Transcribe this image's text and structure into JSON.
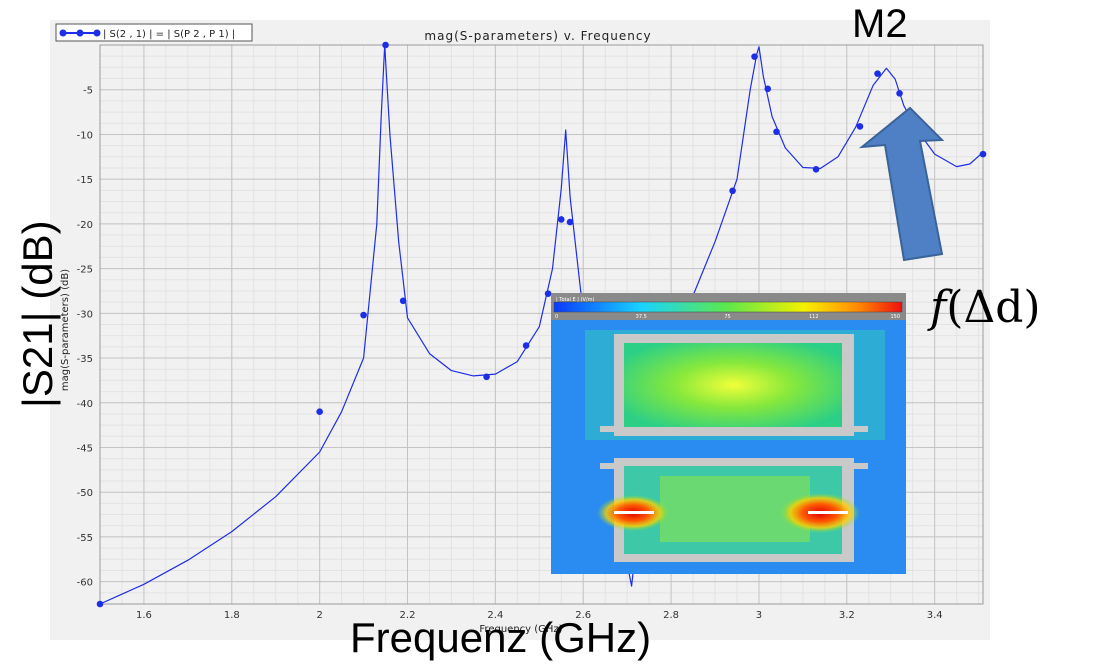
{
  "chart_data": {
    "type": "line",
    "title": "mag(S-parameters) v. Frequency",
    "xlabel": "Frequency (GHz)",
    "ylabel": "mag(S-parameters) (dB)",
    "xlim": [
      1.5,
      3.51
    ],
    "ylim": [
      -62.5,
      0
    ],
    "x_ticks": [
      "1.6",
      "1.8",
      "2",
      "2.2",
      "2.4",
      "2.6",
      "2.8",
      "3",
      "3.2",
      "3.4"
    ],
    "y_ticks": [
      "-5",
      "-10",
      "-15",
      "-20",
      "-25",
      "-30",
      "-35",
      "-40",
      "-45",
      "-50",
      "-55",
      "-60"
    ],
    "grid": true,
    "legend": "| S(2 , 1) | = | S(P 2 , P 1) |",
    "legend_position": "top-left",
    "series": [
      {
        "name": "| S(2 , 1) | = | S(P 2 , P 1) |",
        "color": "#1e2ee6",
        "curve": [
          [
            1.5,
            -62.5
          ],
          [
            1.6,
            -60.3
          ],
          [
            1.7,
            -57.6
          ],
          [
            1.8,
            -54.4
          ],
          [
            1.9,
            -50.5
          ],
          [
            2.0,
            -45.5
          ],
          [
            2.05,
            -41.0
          ],
          [
            2.1,
            -35.0
          ],
          [
            2.13,
            -20.0
          ],
          [
            2.14,
            -8.0
          ],
          [
            2.148,
            0.0
          ],
          [
            2.16,
            -10.0
          ],
          [
            2.18,
            -22.0
          ],
          [
            2.2,
            -30.5
          ],
          [
            2.25,
            -34.5
          ],
          [
            2.3,
            -36.4
          ],
          [
            2.35,
            -37.0
          ],
          [
            2.4,
            -36.8
          ],
          [
            2.45,
            -35.4
          ],
          [
            2.5,
            -31.5
          ],
          [
            2.53,
            -25.0
          ],
          [
            2.55,
            -16.0
          ],
          [
            2.56,
            -9.5
          ],
          [
            2.57,
            -17.0
          ],
          [
            2.6,
            -30.0
          ],
          [
            2.65,
            -42.0
          ],
          [
            2.68,
            -52.0
          ],
          [
            2.7,
            -58.0
          ],
          [
            2.71,
            -60.5
          ],
          [
            2.72,
            -56.0
          ],
          [
            2.75,
            -43.0
          ],
          [
            2.8,
            -34.0
          ],
          [
            2.85,
            -28.0
          ],
          [
            2.9,
            -22.0
          ],
          [
            2.95,
            -15.0
          ],
          [
            2.98,
            -5.0
          ],
          [
            2.995,
            -1.0
          ],
          [
            3.0,
            -0.2
          ],
          [
            3.01,
            -3.5
          ],
          [
            3.03,
            -8.0
          ],
          [
            3.06,
            -11.5
          ],
          [
            3.1,
            -13.7
          ],
          [
            3.14,
            -13.8
          ],
          [
            3.18,
            -12.5
          ],
          [
            3.22,
            -9.2
          ],
          [
            3.26,
            -4.5
          ],
          [
            3.29,
            -2.6
          ],
          [
            3.31,
            -3.8
          ],
          [
            3.33,
            -6.8
          ],
          [
            3.36,
            -9.5
          ],
          [
            3.4,
            -12.2
          ],
          [
            3.45,
            -13.6
          ],
          [
            3.48,
            -13.3
          ],
          [
            3.51,
            -12.0
          ]
        ],
        "markers": [
          [
            1.5,
            -62.5
          ],
          [
            2.0,
            -41.0
          ],
          [
            2.1,
            -30.2
          ],
          [
            2.15,
            0.0
          ],
          [
            2.19,
            -28.6
          ],
          [
            2.38,
            -37.1
          ],
          [
            2.47,
            -33.6
          ],
          [
            2.52,
            -27.8
          ],
          [
            2.55,
            -19.5
          ],
          [
            2.57,
            -19.8
          ],
          [
            2.94,
            -16.3
          ],
          [
            2.99,
            -1.3
          ],
          [
            3.02,
            -4.9
          ],
          [
            3.04,
            -9.7
          ],
          [
            3.13,
            -13.9
          ],
          [
            3.23,
            -9.1
          ],
          [
            3.27,
            -3.2
          ],
          [
            3.32,
            -5.4
          ],
          [
            3.51,
            -12.2
          ]
        ]
      }
    ]
  },
  "overlay": {
    "marker_label": "M2",
    "axis_x_big": "Frequenz (GHz)",
    "axis_y_big": "|S21| (dB)",
    "function_label": "f",
    "function_arg": "(Δd)"
  },
  "field_plot": {
    "scale_title": "| Total E | (V/m)",
    "scale_ticks": [
      "0",
      "37.5",
      "75",
      "112",
      "150"
    ]
  }
}
